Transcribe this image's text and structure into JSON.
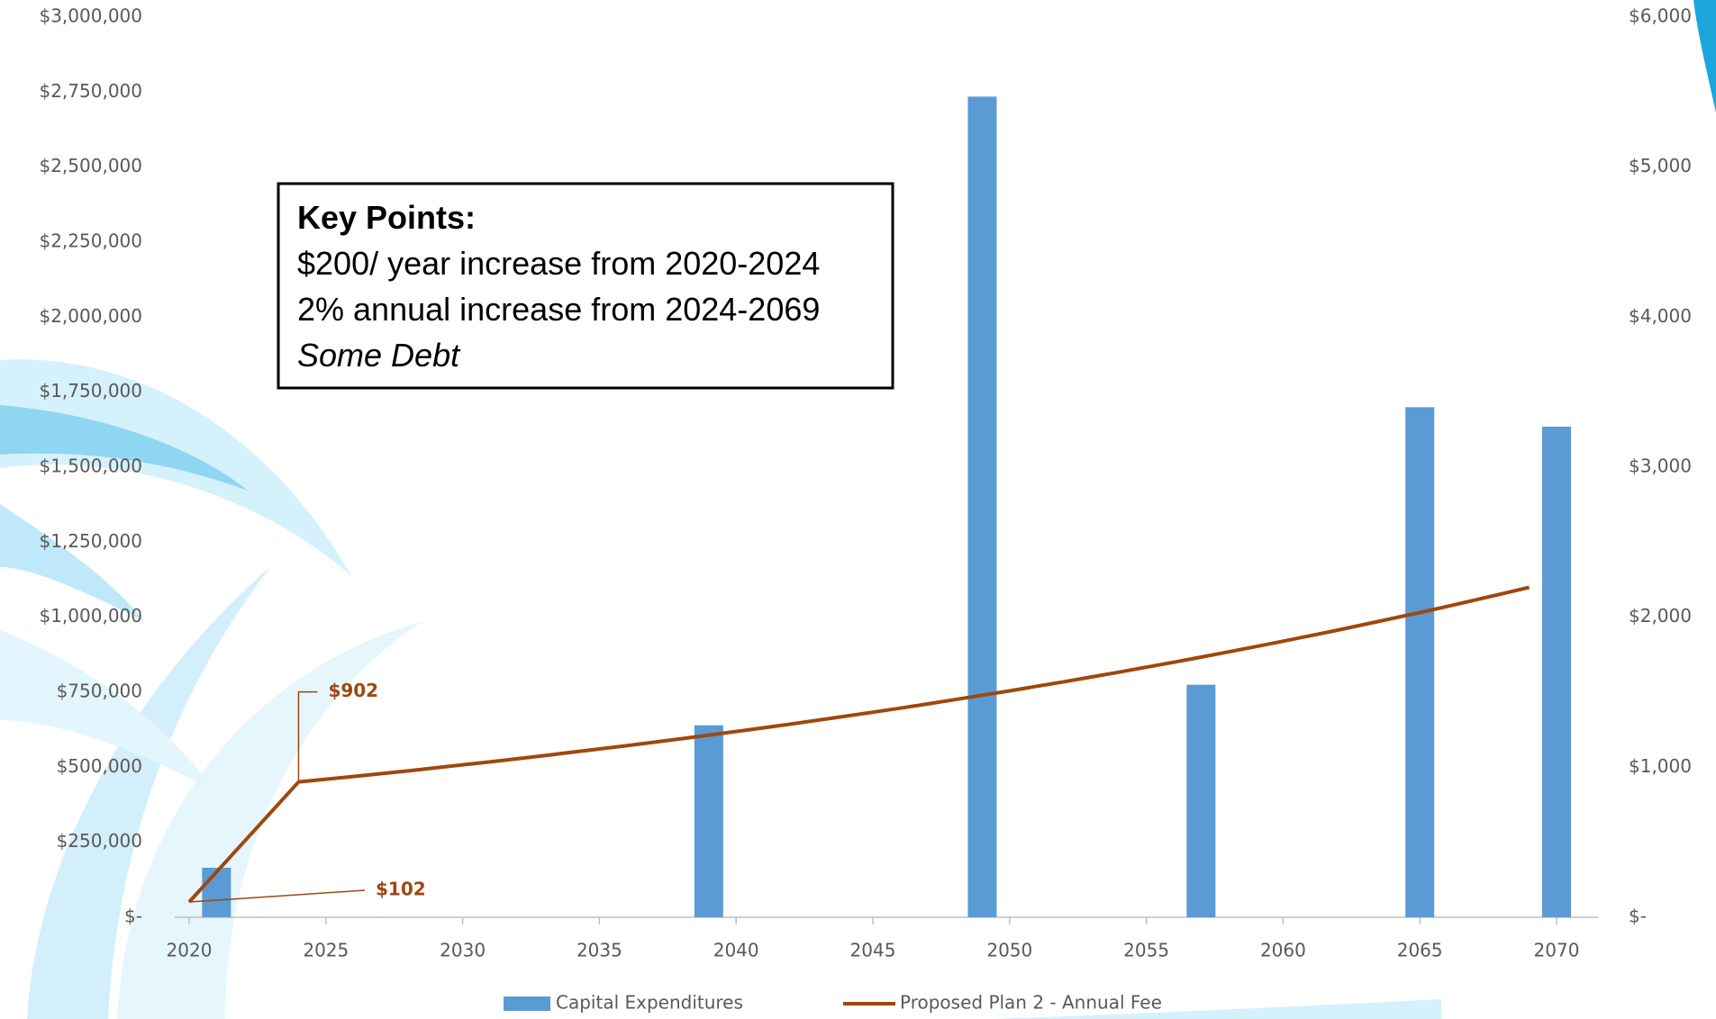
{
  "chart_data": {
    "type": "bar-line",
    "xlim": [
      2020,
      2070
    ],
    "xticks": [
      2020,
      2025,
      2030,
      2035,
      2040,
      2045,
      2050,
      2055,
      2060,
      2065,
      2070
    ],
    "ylim": [
      0,
      3000000
    ],
    "yticks": [
      {
        "value": 0,
        "label": "$-"
      },
      {
        "value": 250000,
        "label": "$250,000"
      },
      {
        "value": 500000,
        "label": "$500,000"
      },
      {
        "value": 750000,
        "label": "$750,000"
      },
      {
        "value": 1000000,
        "label": "$1,000,000"
      },
      {
        "value": 1250000,
        "label": "$1,250,000"
      },
      {
        "value": 1500000,
        "label": "$1,500,000"
      },
      {
        "value": 1750000,
        "label": "$1,750,000"
      },
      {
        "value": 2000000,
        "label": "$2,000,000"
      },
      {
        "value": 2250000,
        "label": "$2,250,000"
      },
      {
        "value": 2500000,
        "label": "$2,500,000"
      },
      {
        "value": 2750000,
        "label": "$2,750,000"
      },
      {
        "value": 3000000,
        "label": "$3,000,000"
      }
    ],
    "y2lim": [
      0,
      6000
    ],
    "y2ticks": [
      {
        "value": 0,
        "label": "$-"
      },
      {
        "value": 1000,
        "label": "$1,000"
      },
      {
        "value": 2000,
        "label": "$2,000"
      },
      {
        "value": 3000,
        "label": "$3,000"
      },
      {
        "value": 4000,
        "label": "$4,000"
      },
      {
        "value": 5000,
        "label": "$5,000"
      },
      {
        "value": 6000,
        "label": "$6,000"
      }
    ],
    "series": [
      {
        "name": "Capital Expenditures",
        "type": "bar",
        "color": "#5b9bd5",
        "x": [
          2021,
          2039,
          2049,
          2057,
          2065,
          2070
        ],
        "values": [
          165000,
          640000,
          2735000,
          775000,
          1700000,
          1635000
        ]
      },
      {
        "name": "Proposed Plan 2 - Annual Fee",
        "type": "line",
        "axis": "y2",
        "color": "#9e480e",
        "x": [
          2020,
          2021,
          2022,
          2023,
          2024,
          2025,
          2026,
          2027,
          2028,
          2029,
          2030,
          2031,
          2032,
          2033,
          2034,
          2035,
          2036,
          2037,
          2038,
          2039,
          2040,
          2041,
          2042,
          2043,
          2044,
          2045,
          2046,
          2047,
          2048,
          2049,
          2050,
          2051,
          2052,
          2053,
          2054,
          2055,
          2056,
          2057,
          2058,
          2059,
          2060,
          2061,
          2062,
          2063,
          2064,
          2065,
          2066,
          2067,
          2068,
          2069
        ],
        "values": [
          102,
          302,
          502,
          702,
          902,
          920,
          938,
          957,
          976,
          996,
          1016,
          1036,
          1057,
          1078,
          1100,
          1122,
          1144,
          1167,
          1190,
          1214,
          1238,
          1263,
          1288,
          1314,
          1340,
          1367,
          1394,
          1422,
          1451,
          1480,
          1509,
          1540,
          1570,
          1602,
          1634,
          1667,
          1700,
          1734,
          1769,
          1804,
          1840,
          1877,
          1914,
          1953,
          1992,
          2031,
          2072,
          2114,
          2156,
          2199
        ],
        "value_labels": [
          "$102",
          null,
          null,
          null,
          "$902",
          null,
          null,
          null,
          null,
          null,
          null,
          null,
          null,
          null,
          null,
          null,
          null,
          null,
          null,
          null,
          null,
          null,
          null,
          null,
          null,
          null,
          null,
          null,
          null,
          null,
          null,
          null,
          null,
          null,
          null,
          null,
          null,
          null,
          null,
          null,
          null,
          null,
          null,
          null,
          null,
          null,
          null,
          null,
          null,
          null
        ]
      }
    ],
    "annotations": [
      "Key Points:",
      "$200/ year increase from 2020-2024",
      "2% annual increase from 2024-2069",
      "Some Debt"
    ]
  }
}
